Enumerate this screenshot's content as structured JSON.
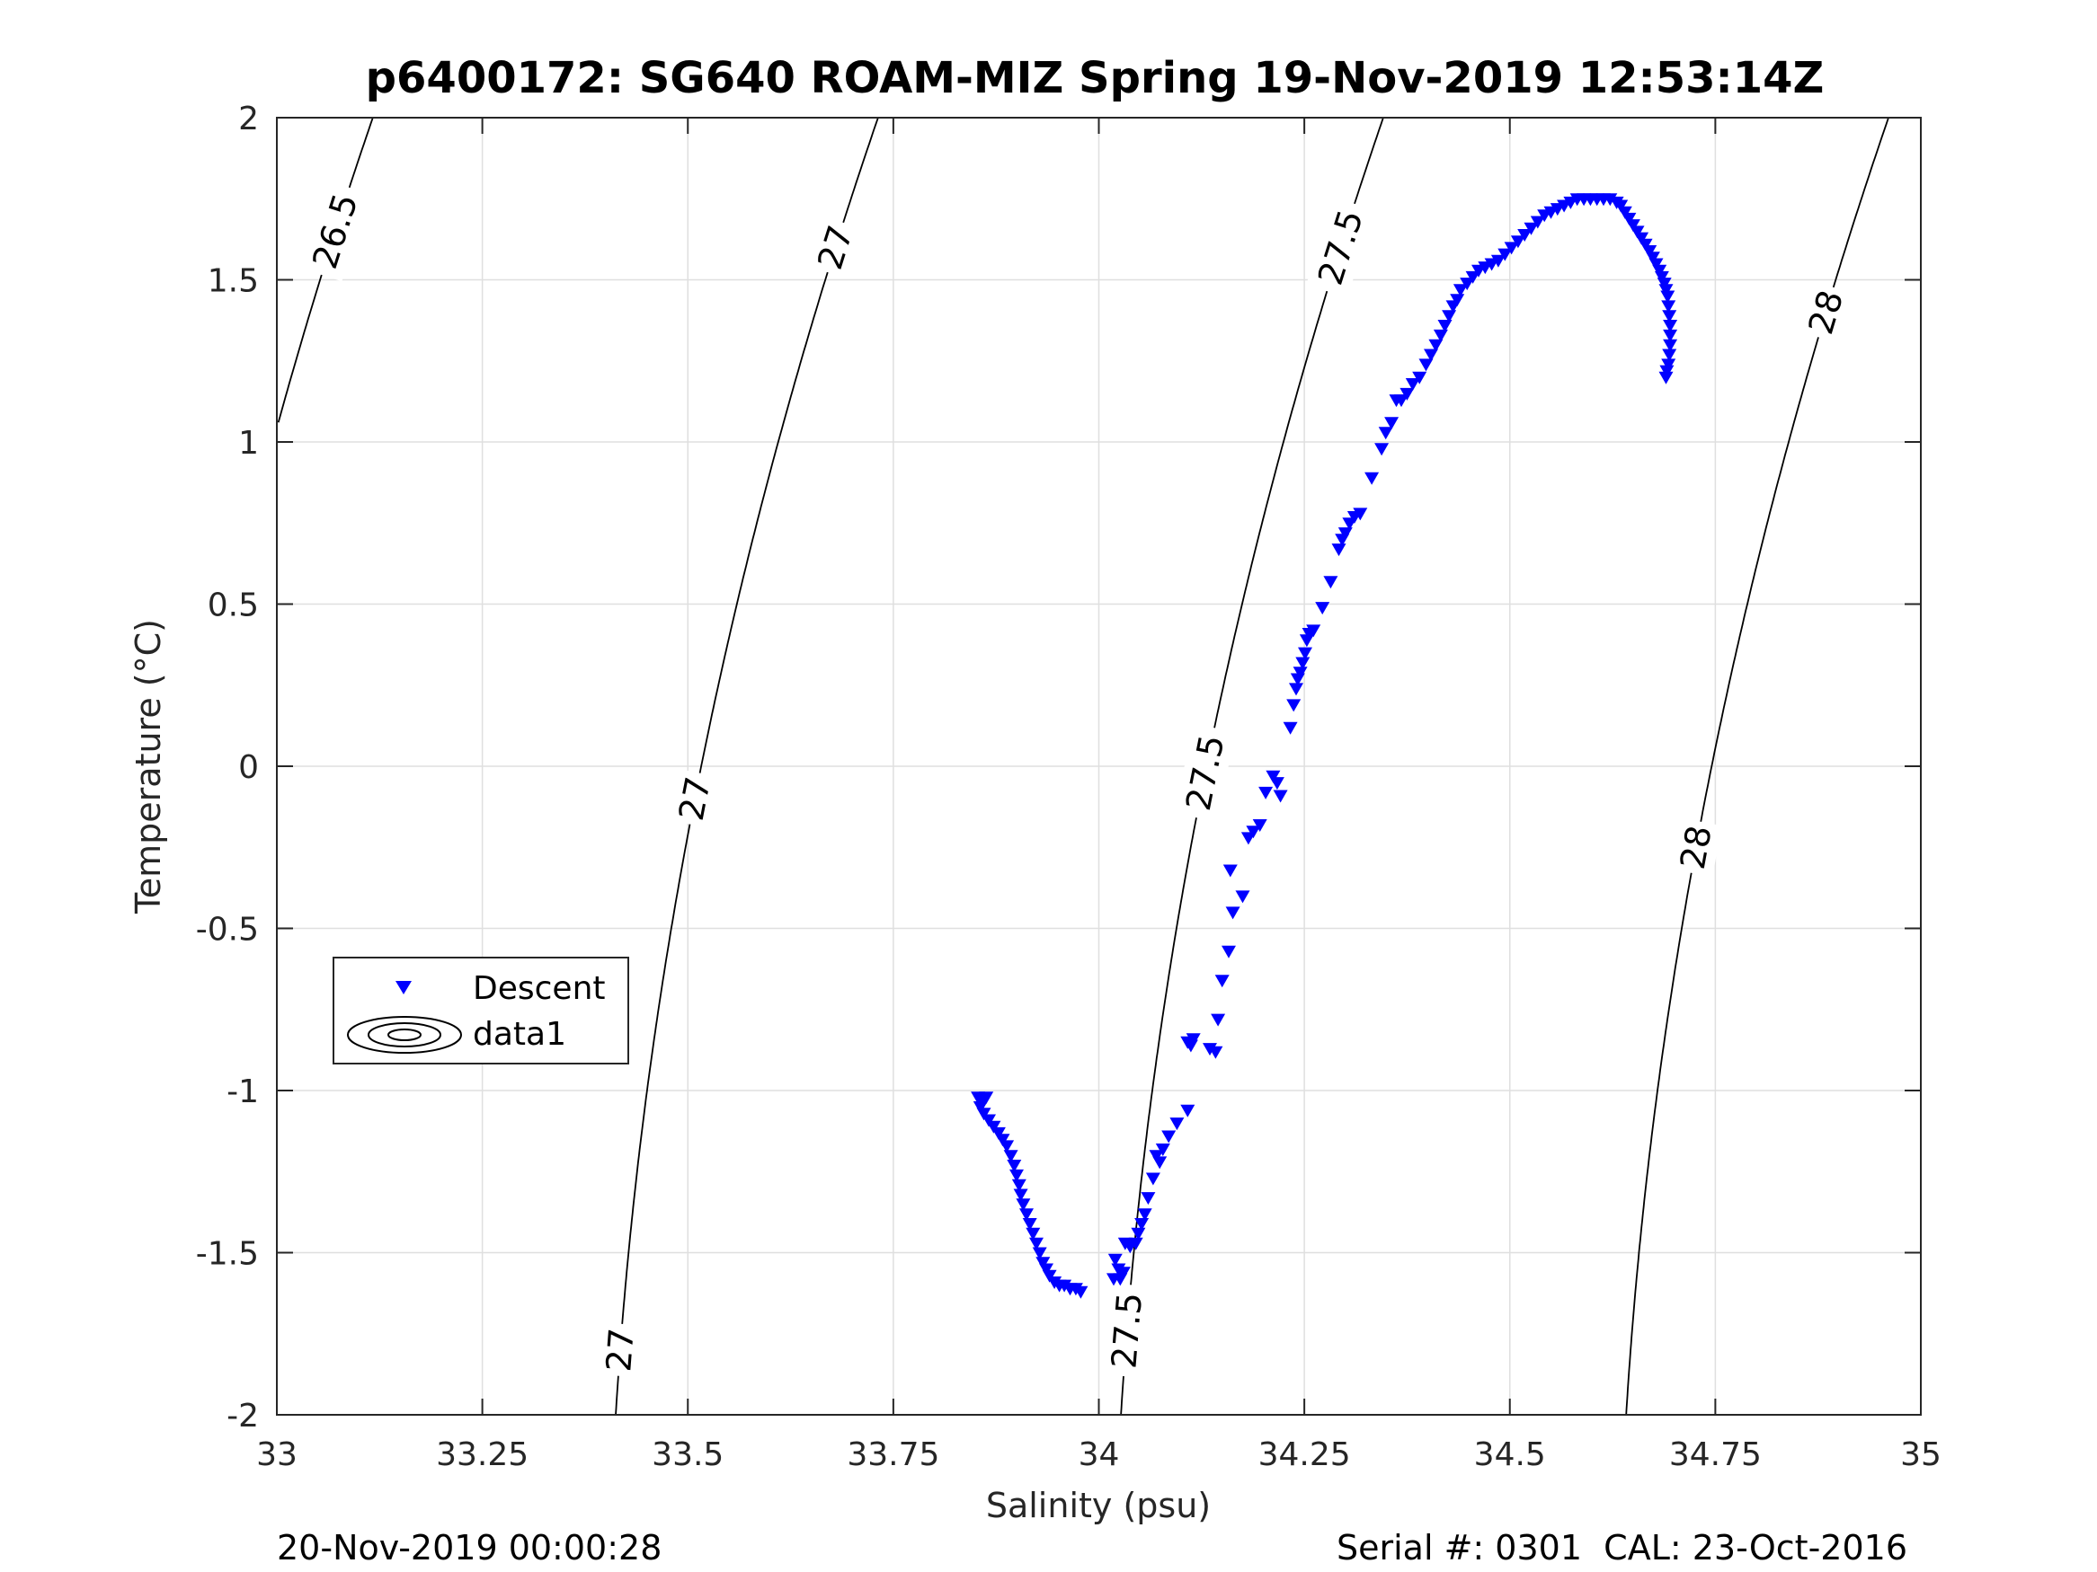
{
  "chart_data": {
    "type": "scatter",
    "title": "p6400172: SG640 ROAM-MIZ Spring 19-Nov-2019 12:53:14Z",
    "xlabel": "Salinity (psu)",
    "ylabel": "Temperature (°C)",
    "xlim": [
      33,
      35
    ],
    "ylim": [
      -2,
      2
    ],
    "x_ticks": [
      33,
      33.25,
      33.5,
      33.75,
      34,
      34.25,
      34.5,
      34.75,
      35
    ],
    "x_tick_labels": [
      "33",
      "33.25",
      "33.5",
      "33.75",
      "34",
      "34.25",
      "34.5",
      "34.75",
      "35"
    ],
    "y_ticks": [
      -2,
      -1.5,
      -1,
      -0.5,
      0,
      0.5,
      1,
      1.5,
      2
    ],
    "y_tick_labels": [
      "-2",
      "-1.5",
      "-1",
      "-0.5",
      "0",
      "0.5",
      "1",
      "1.5",
      "2"
    ],
    "grid": true,
    "legend": {
      "placement": "lower-left",
      "entries": [
        "Descent",
        "data1"
      ]
    },
    "series": [
      {
        "name": "Descent",
        "marker": "triangle-down",
        "color": "#0000ff",
        "points": [
          [
            33.853,
            -1.02
          ],
          [
            33.858,
            -1.03
          ],
          [
            33.863,
            -1.02
          ],
          [
            33.856,
            -1.05
          ],
          [
            33.86,
            -1.07
          ],
          [
            33.866,
            -1.09
          ],
          [
            33.872,
            -1.11
          ],
          [
            33.878,
            -1.13
          ],
          [
            33.883,
            -1.15
          ],
          [
            33.888,
            -1.17
          ],
          [
            33.893,
            -1.2
          ],
          [
            33.897,
            -1.23
          ],
          [
            33.9,
            -1.26
          ],
          [
            33.903,
            -1.29
          ],
          [
            33.905,
            -1.32
          ],
          [
            33.908,
            -1.35
          ],
          [
            33.912,
            -1.38
          ],
          [
            33.916,
            -1.41
          ],
          [
            33.92,
            -1.44
          ],
          [
            33.924,
            -1.47
          ],
          [
            33.928,
            -1.5
          ],
          [
            33.932,
            -1.53
          ],
          [
            33.936,
            -1.55
          ],
          [
            33.94,
            -1.57
          ],
          [
            33.946,
            -1.59
          ],
          [
            33.952,
            -1.6
          ],
          [
            33.958,
            -1.6
          ],
          [
            33.965,
            -1.61
          ],
          [
            33.972,
            -1.61
          ],
          [
            33.978,
            -1.62
          ],
          [
            34.02,
            -1.52
          ],
          [
            34.024,
            -1.55
          ],
          [
            34.018,
            -1.58
          ],
          [
            34.026,
            -1.58
          ],
          [
            34.03,
            -1.56
          ],
          [
            34.032,
            -1.47
          ],
          [
            34.038,
            -1.48
          ],
          [
            34.045,
            -1.47
          ],
          [
            34.048,
            -1.44
          ],
          [
            34.052,
            -1.41
          ],
          [
            34.056,
            -1.38
          ],
          [
            34.06,
            -1.33
          ],
          [
            34.066,
            -1.27
          ],
          [
            34.07,
            -1.2
          ],
          [
            34.074,
            -1.22
          ],
          [
            34.078,
            -1.18
          ],
          [
            34.085,
            -1.14
          ],
          [
            34.095,
            -1.1
          ],
          [
            34.108,
            -1.06
          ],
          [
            34.108,
            -0.85
          ],
          [
            34.115,
            -0.84
          ],
          [
            34.112,
            -0.86
          ],
          [
            34.135,
            -0.87
          ],
          [
            34.142,
            -0.88
          ],
          [
            34.145,
            -0.78
          ],
          [
            34.15,
            -0.66
          ],
          [
            34.158,
            -0.57
          ],
          [
            34.163,
            -0.45
          ],
          [
            34.16,
            -0.32
          ],
          [
            34.175,
            -0.4
          ],
          [
            34.182,
            -0.22
          ],
          [
            34.188,
            -0.2
          ],
          [
            34.196,
            -0.18
          ],
          [
            34.203,
            -0.08
          ],
          [
            34.212,
            -0.03
          ],
          [
            34.217,
            -0.05
          ],
          [
            34.221,
            -0.09
          ],
          [
            34.233,
            0.12
          ],
          [
            34.237,
            0.19
          ],
          [
            34.24,
            0.24
          ],
          [
            34.242,
            0.27
          ],
          [
            34.245,
            0.29
          ],
          [
            34.248,
            0.32
          ],
          [
            34.251,
            0.35
          ],
          [
            34.253,
            0.39
          ],
          [
            34.256,
            0.41
          ],
          [
            34.261,
            0.42
          ],
          [
            34.272,
            0.49
          ],
          [
            34.282,
            0.57
          ],
          [
            34.292,
            0.67
          ],
          [
            34.296,
            0.7
          ],
          [
            34.3,
            0.72
          ],
          [
            34.305,
            0.75
          ],
          [
            34.311,
            0.77
          ],
          [
            34.318,
            0.78
          ],
          [
            34.332,
            0.89
          ],
          [
            34.344,
            0.98
          ],
          [
            34.349,
            1.03
          ],
          [
            34.356,
            1.06
          ],
          [
            34.362,
            1.13
          ],
          [
            34.368,
            1.13
          ],
          [
            34.375,
            1.15
          ],
          [
            34.382,
            1.18
          ],
          [
            34.39,
            1.2
          ],
          [
            34.398,
            1.24
          ],
          [
            34.404,
            1.27
          ],
          [
            34.41,
            1.3
          ],
          [
            34.416,
            1.33
          ],
          [
            34.421,
            1.36
          ],
          [
            34.426,
            1.39
          ],
          [
            34.431,
            1.42
          ],
          [
            34.436,
            1.44
          ],
          [
            34.44,
            1.47
          ],
          [
            34.448,
            1.49
          ],
          [
            34.455,
            1.51
          ],
          [
            34.462,
            1.53
          ],
          [
            34.47,
            1.54
          ],
          [
            34.478,
            1.55
          ],
          [
            34.486,
            1.56
          ],
          [
            34.494,
            1.58
          ],
          [
            34.502,
            1.6
          ],
          [
            34.51,
            1.62
          ],
          [
            34.518,
            1.64
          ],
          [
            34.526,
            1.66
          ],
          [
            34.534,
            1.68
          ],
          [
            34.542,
            1.7
          ],
          [
            34.55,
            1.71
          ],
          [
            34.558,
            1.72
          ],
          [
            34.566,
            1.73
          ],
          [
            34.574,
            1.74
          ],
          [
            34.582,
            1.75
          ],
          [
            34.59,
            1.75
          ],
          [
            34.598,
            1.75
          ],
          [
            34.606,
            1.75
          ],
          [
            34.614,
            1.75
          ],
          [
            34.622,
            1.75
          ],
          [
            34.63,
            1.74
          ],
          [
            34.635,
            1.73
          ],
          [
            34.64,
            1.71
          ],
          [
            34.645,
            1.69
          ],
          [
            34.65,
            1.67
          ],
          [
            34.655,
            1.65
          ],
          [
            34.66,
            1.63
          ],
          [
            34.665,
            1.61
          ],
          [
            34.67,
            1.59
          ],
          [
            34.674,
            1.57
          ],
          [
            34.678,
            1.55
          ],
          [
            34.682,
            1.53
          ],
          [
            34.685,
            1.51
          ],
          [
            34.688,
            1.49
          ],
          [
            34.69,
            1.47
          ],
          [
            34.692,
            1.45
          ],
          [
            34.693,
            1.42
          ],
          [
            34.694,
            1.39
          ],
          [
            34.695,
            1.36
          ],
          [
            34.695,
            1.33
          ],
          [
            34.695,
            1.3
          ],
          [
            34.694,
            1.27
          ],
          [
            34.693,
            1.24
          ],
          [
            34.691,
            1.22
          ],
          [
            34.69,
            1.2
          ]
        ]
      }
    ],
    "contours": [
      {
        "level": 26.5,
        "label": "26.5"
      },
      {
        "level": 27,
        "label": "27"
      },
      {
        "level": 27.5,
        "label": "27.5"
      },
      {
        "level": 28,
        "label": "28"
      }
    ],
    "footer_left": "20-Nov-2019 00:00:28",
    "footer_right": "Serial #: 0301  CAL: 23-Oct-2016"
  },
  "colors": {
    "marker": "#0000ff",
    "axes": "#262626",
    "grid": "#dfdfdf",
    "contour": "#000000"
  }
}
